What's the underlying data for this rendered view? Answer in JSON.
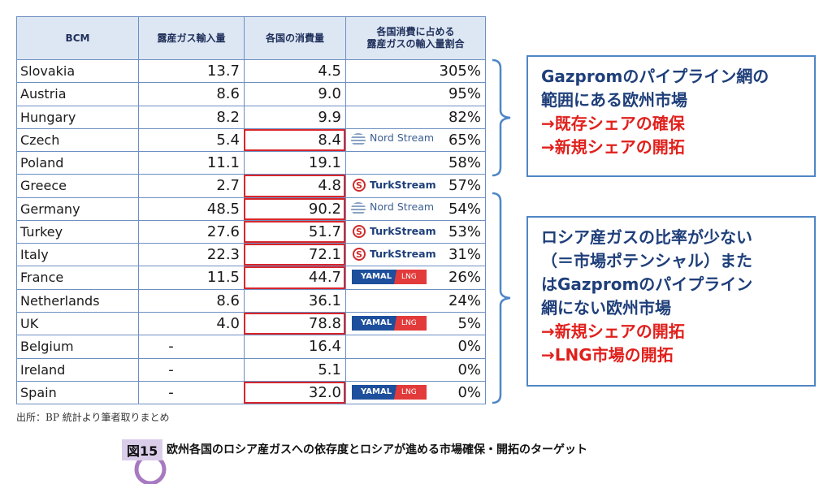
{
  "table": {
    "header": [
      "BCM",
      "露産ガス輸入量",
      "各国の消費量",
      [
        "各国消費に占める",
        "露産ガスの輸入量割合"
      ]
    ],
    "rows": [
      {
        "country": "Slovakia",
        "imports": "13.7",
        "consumption": "4.5",
        "share": "305%"
      },
      {
        "country": "Austria",
        "imports": "8.6",
        "consumption": "9.0",
        "share": "95%"
      },
      {
        "country": "Hungary",
        "imports": "8.2",
        "consumption": "9.9",
        "share": "82%"
      },
      {
        "country": "Czech",
        "imports": "5.4",
        "consumption": "8.4",
        "share": "65%",
        "logo": {
          "name": "Nord Stream"
        }
      },
      {
        "country": "Poland",
        "imports": "11.1",
        "consumption": "19.1",
        "share": "58%"
      },
      {
        "country": "Greece",
        "imports": "2.7",
        "consumption": "4.8",
        "share": "57%",
        "logo": {
          "icon": "S",
          "name": "TurkStream"
        }
      },
      {
        "country": "Germany",
        "imports": "48.5",
        "consumption": "90.2",
        "share": "54%",
        "logo": {
          "name": "Nord Stream"
        }
      },
      {
        "country": "Turkey",
        "imports": "27.6",
        "consumption": "51.7",
        "share": "53%",
        "logo": {
          "icon": "S",
          "name": "TurkStream"
        }
      },
      {
        "country": "Italy",
        "imports": "22.3",
        "consumption": "72.1",
        "share": "31%",
        "logo": {
          "icon": "S",
          "name": "TurkStream"
        }
      },
      {
        "country": "France",
        "imports": "11.5",
        "consumption": "44.7",
        "share": "26%",
        "logo": {
          "left": "YAMAL",
          "right": "LNG"
        }
      },
      {
        "country": "Netherlands",
        "imports": "8.6",
        "consumption": "36.1",
        "share": "24%"
      },
      {
        "country": "UK",
        "imports": "4.0",
        "consumption": "78.8",
        "share": "5%",
        "logo": {
          "left": "YAMAL",
          "right": "LNG"
        }
      },
      {
        "country": "Belgium",
        "imports": "-",
        "consumption": "16.4",
        "share": "0%"
      },
      {
        "country": "Ireland",
        "imports": "-",
        "consumption": "5.1",
        "share": "0%"
      },
      {
        "country": "Spain",
        "imports": "-",
        "consumption": "32.0",
        "share": "0%",
        "logo": {
          "left": "YAMAL",
          "right": "LNG"
        }
      }
    ]
  },
  "boxes": [
    {
      "lines": [
        "Gazpromのパイプライン網の",
        "範囲にある欧州市場"
      ],
      "points": [
        "→既存シェアの確保",
        "→新規シェアの開拓"
      ]
    },
    {
      "lines": [
        "ロシア産ガスの比率が少ない",
        "（＝市場ポテンシャル）また",
        "はGazpromのパイプライン",
        "網にない欧州市場"
      ],
      "points": [
        "→新規シェアの開拓",
        "→LNG市場の開拓"
      ]
    }
  ],
  "source": "出所：BP 統計より筆者取りまとめ",
  "figure": {
    "number": "図15",
    "title": "欧州各国のロシア産ガスへの依存度とロシアが進める市場確保・開拓のターゲット"
  }
}
